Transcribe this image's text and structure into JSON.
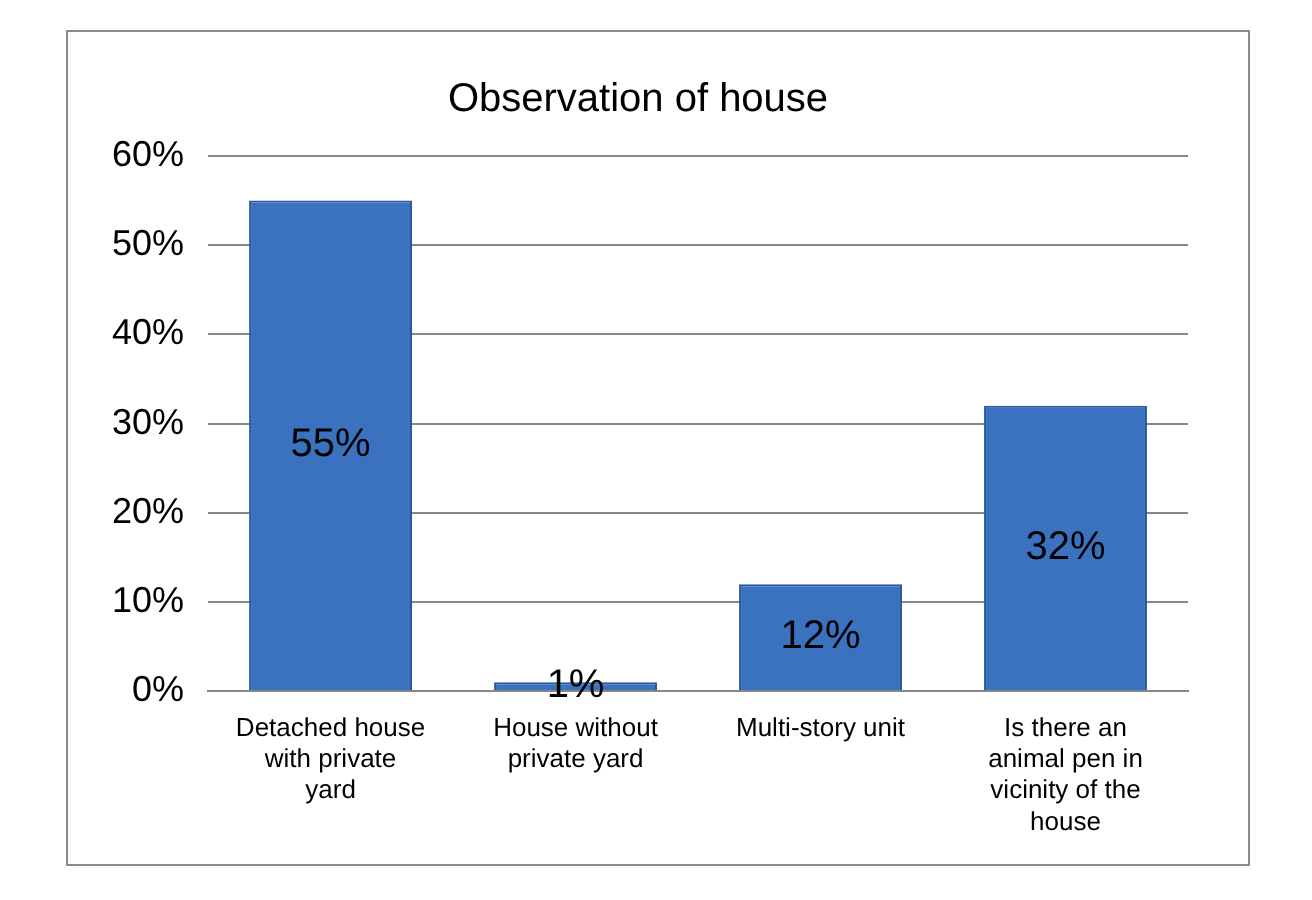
{
  "chart_data": {
    "type": "bar",
    "title": "Observation of house",
    "categories": [
      "Detached house with private yard",
      "House without private yard",
      "Multi-story unit",
      "Is there an animal pen in vicinity of the house"
    ],
    "values": [
      55,
      1,
      12,
      32
    ],
    "value_labels": [
      "55%",
      "1%",
      "12%",
      "32%"
    ],
    "color": "#3b72c0",
    "ylim": [
      0,
      60
    ],
    "yticks": [
      {
        "value": 0,
        "label": "0%"
      },
      {
        "value": 10,
        "label": "10%"
      },
      {
        "value": 20,
        "label": "20%"
      },
      {
        "value": 30,
        "label": "30%"
      },
      {
        "value": 40,
        "label": "40%"
      },
      {
        "value": 50,
        "label": "50%"
      },
      {
        "value": 60,
        "label": "60%"
      }
    ],
    "grid": "y",
    "legend": false
  }
}
